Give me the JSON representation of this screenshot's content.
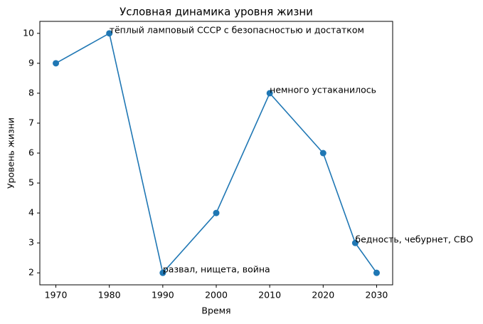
{
  "chart_data": {
    "type": "line",
    "title": "Условная динамика уровня жизни",
    "xlabel": "Время",
    "ylabel": "Уровень жизни",
    "x": [
      1970,
      1980,
      1990,
      2000,
      2010,
      2020,
      2026,
      2030
    ],
    "values": [
      9,
      10,
      2,
      4,
      8,
      6,
      3,
      2
    ],
    "color": "#1f77b4",
    "xlim": [
      1967,
      2033
    ],
    "ylim": [
      1.6,
      10.4
    ],
    "xticks": [
      1970,
      1980,
      1990,
      2000,
      2010,
      2020,
      2030
    ],
    "yticks": [
      2,
      3,
      4,
      5,
      6,
      7,
      8,
      9,
      10
    ],
    "annotations": [
      {
        "text": "тёплый ламповый СССР с безопасностью и достатком",
        "x": 1980,
        "y": 10
      },
      {
        "text": "развал, нищета, война",
        "x": 1990,
        "y": 2
      },
      {
        "text": "немного устаканилось",
        "x": 2010,
        "y": 8
      },
      {
        "text": "бедность, чебурнет, СВО",
        "x": 2026,
        "y": 3
      }
    ]
  }
}
